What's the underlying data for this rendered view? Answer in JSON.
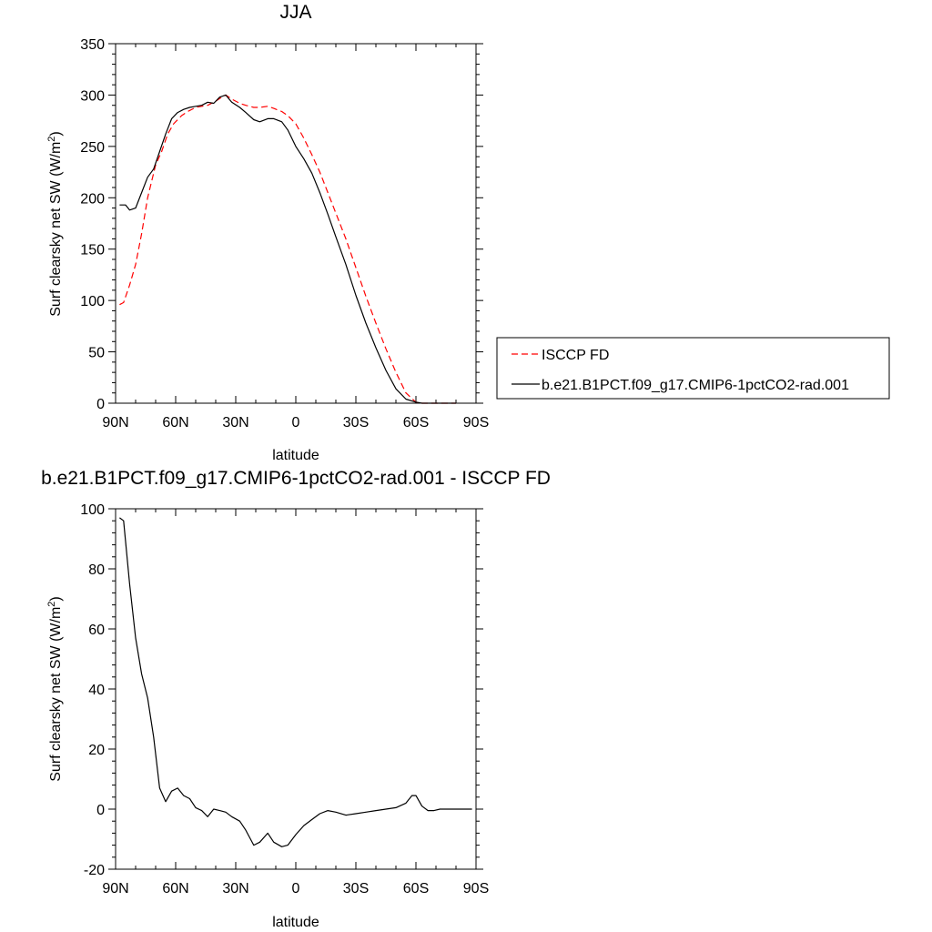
{
  "chart_data": [
    {
      "type": "line",
      "title": "JJA",
      "xlabel": "latitude",
      "ylabel": "Surf clearsky net SW (W/m",
      "ylabel_sup": "2",
      "ylabel_close": ")",
      "xlim": [
        90,
        -90
      ],
      "ylim": [
        0,
        350
      ],
      "x_ticks": [
        90,
        60,
        30,
        0,
        -30,
        -60,
        -90
      ],
      "x_tick_labels": [
        "90N",
        "60N",
        "30N",
        "0",
        "30S",
        "60S",
        "90S"
      ],
      "y_ticks": [
        0,
        50,
        100,
        150,
        200,
        250,
        300,
        350
      ],
      "y_tick_labels": [
        "0",
        "50",
        "100",
        "150",
        "200",
        "250",
        "300",
        "350"
      ],
      "grid": false,
      "legend_position": "right",
      "series": [
        {
          "name": "ISCCP FD",
          "color": "#ff0000",
          "dash": "dashed",
          "x": [
            88,
            86,
            83,
            80,
            77,
            74,
            70,
            67,
            64,
            61,
            57,
            54,
            50,
            47,
            44,
            40,
            37,
            35,
            32,
            28,
            25,
            21,
            18,
            14,
            11,
            7,
            4,
            0,
            -4,
            -8,
            -12,
            -16,
            -20,
            -25,
            -30,
            -35,
            -40,
            -45,
            -50,
            -55,
            -60,
            -63,
            -66,
            -69,
            -72,
            -75,
            -78,
            -80
          ],
          "y": [
            96,
            98,
            115,
            135,
            165,
            200,
            232,
            245,
            262,
            272,
            280,
            284,
            288,
            289,
            290,
            294,
            298,
            300,
            296,
            292,
            290,
            288,
            288,
            289,
            287,
            284,
            280,
            272,
            258,
            242,
            225,
            205,
            185,
            160,
            132,
            104,
            78,
            53,
            30,
            10,
            1,
            0,
            0,
            0,
            0,
            0,
            0,
            0
          ]
        },
        {
          "name": "b.e21.B1PCT.f09_g17.CMIP6-1pctCO2-rad.001",
          "color": "#000000",
          "dash": "solid",
          "x": [
            88,
            85,
            83,
            80,
            77,
            74,
            71,
            68,
            65,
            62,
            59,
            56,
            53,
            50,
            47,
            44,
            41,
            38,
            35,
            32,
            28,
            25,
            21,
            18,
            14,
            11,
            7,
            4,
            0,
            -4,
            -8,
            -12,
            -16,
            -20,
            -25,
            -30,
            -35,
            -40,
            -45,
            -50,
            -55,
            -60,
            -63,
            -66,
            -69,
            -72,
            -75,
            -78,
            -80
          ],
          "y": [
            193,
            193,
            188,
            190,
            205,
            220,
            228,
            245,
            262,
            277,
            283,
            286,
            288,
            289,
            290,
            293,
            292,
            298,
            300,
            293,
            288,
            283,
            276,
            274,
            277,
            277,
            274,
            266,
            250,
            238,
            224,
            205,
            184,
            162,
            135,
            105,
            78,
            54,
            32,
            14,
            4,
            1,
            0,
            0,
            0,
            0,
            0,
            0,
            0
          ]
        }
      ]
    },
    {
      "type": "line",
      "title": "b.e21.B1PCT.f09_g17.CMIP6-1pctCO2-rad.001 - ISCCP FD",
      "xlabel": "latitude",
      "ylabel": "Surf clearsky net SW (W/m",
      "ylabel_sup": "2",
      "ylabel_close": ")",
      "xlim": [
        90,
        -90
      ],
      "ylim": [
        -20,
        100
      ],
      "x_ticks": [
        90,
        60,
        30,
        0,
        -30,
        -60,
        -90
      ],
      "x_tick_labels": [
        "90N",
        "60N",
        "30N",
        "0",
        "30S",
        "60S",
        "90S"
      ],
      "y_ticks": [
        -20,
        0,
        20,
        40,
        60,
        80,
        100
      ],
      "y_tick_labels": [
        "-20",
        "0",
        "20",
        "40",
        "60",
        "80",
        "100"
      ],
      "grid": false,
      "series": [
        {
          "color": "#000000",
          "dash": "solid",
          "x": [
            88,
            86,
            83,
            80,
            77,
            74,
            71,
            68,
            65,
            62,
            59,
            56,
            53,
            50,
            47,
            44,
            41,
            38,
            35,
            32,
            28,
            25,
            21,
            18,
            14,
            11,
            7,
            4,
            0,
            -4,
            -8,
            -12,
            -16,
            -20,
            -25,
            -30,
            -35,
            -40,
            -45,
            -50,
            -55,
            -58,
            -60,
            -63,
            -66,
            -69,
            -72,
            -75,
            -78,
            -81,
            -84,
            -88
          ],
          "y": [
            97,
            96,
            75,
            57,
            45,
            37,
            24,
            7,
            2.5,
            6,
            7,
            4.5,
            3.5,
            0.5,
            -0.5,
            -2.5,
            0,
            -0.5,
            -1,
            -2.5,
            -4,
            -7,
            -12,
            -11,
            -8,
            -11,
            -12.5,
            -12,
            -8.5,
            -5.5,
            -3.5,
            -1.5,
            -0.5,
            -1,
            -2,
            -1.5,
            -1,
            -0.5,
            0,
            0.5,
            2,
            4.5,
            4.5,
            1,
            -0.5,
            -0.5,
            0,
            0,
            0,
            0,
            0,
            0
          ]
        }
      ]
    }
  ]
}
